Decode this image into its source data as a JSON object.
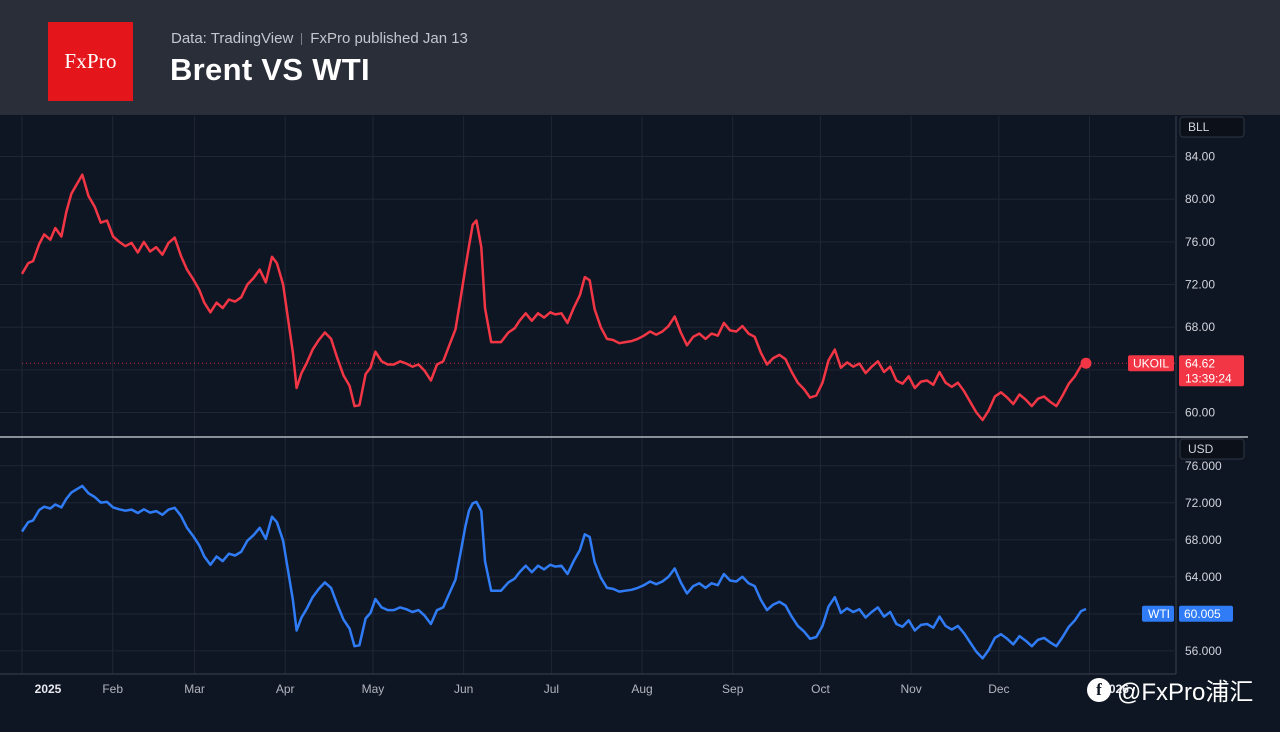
{
  "header": {
    "logo_text": "FxPro",
    "source": "Data: TradingView",
    "publisher": "FxPro published Jan 13",
    "title": "Brent VS WTI"
  },
  "watermark": {
    "text": "@FxPro浦汇",
    "icon": "facebook-icon"
  },
  "colors": {
    "brent": "#f23645",
    "wti": "#2f7cf6",
    "background": "#0f1623",
    "header": "#2a2e39",
    "grid": "#1f2635",
    "divider": "#b2b5be"
  },
  "chart_data": [
    {
      "type": "line",
      "currency_label": "BLL",
      "series": [
        {
          "name": "UKOIL",
          "last_value": "64.62",
          "countdown": "13:39:24"
        }
      ],
      "y_ticks": [
        "84.00",
        "80.00",
        "76.00",
        "72.00",
        "68.00",
        "64.00",
        "60.00"
      ],
      "ylim": [
        57.8,
        87.8
      ],
      "points": [
        [
          0,
          73.0
        ],
        [
          5,
          74.0
        ],
        [
          9,
          74.2
        ],
        [
          14,
          75.8
        ],
        [
          18,
          76.7
        ],
        [
          23,
          76.2
        ],
        [
          27,
          77.3
        ],
        [
          32,
          76.5
        ],
        [
          36,
          78.8
        ],
        [
          40,
          80.5
        ],
        [
          44,
          81.3
        ],
        [
          49,
          82.3
        ],
        [
          54,
          80.3
        ],
        [
          59,
          79.3
        ],
        [
          64,
          77.8
        ],
        [
          69,
          78.0
        ],
        [
          74,
          76.5
        ],
        [
          79,
          76.0
        ],
        [
          84,
          75.6
        ],
        [
          89,
          75.9
        ],
        [
          94,
          75.0
        ],
        [
          99,
          76.0
        ],
        [
          104,
          75.1
        ],
        [
          109,
          75.5
        ],
        [
          114,
          74.8
        ],
        [
          119,
          75.9
        ],
        [
          124,
          76.4
        ],
        [
          129,
          74.7
        ],
        [
          134,
          73.4
        ],
        [
          139,
          72.5
        ],
        [
          144,
          71.5
        ],
        [
          148,
          70.3
        ],
        [
          153,
          69.4
        ],
        [
          158,
          70.3
        ],
        [
          163,
          69.8
        ],
        [
          168,
          70.6
        ],
        [
          173,
          70.4
        ],
        [
          178,
          70.8
        ],
        [
          183,
          72.0
        ],
        [
          188,
          72.6
        ],
        [
          193,
          73.4
        ],
        [
          198,
          72.2
        ],
        [
          203,
          74.6
        ],
        [
          207,
          74.0
        ],
        [
          212,
          72.0
        ],
        [
          216,
          68.8
        ],
        [
          220,
          65.6
        ],
        [
          223,
          62.3
        ],
        [
          227,
          63.7
        ],
        [
          231,
          64.6
        ],
        [
          236,
          65.9
        ],
        [
          241,
          66.8
        ],
        [
          246,
          67.5
        ],
        [
          251,
          66.9
        ],
        [
          256,
          65.1
        ],
        [
          261,
          63.5
        ],
        [
          266,
          62.5
        ],
        [
          270,
          60.6
        ],
        [
          274,
          60.7
        ],
        [
          279,
          63.6
        ],
        [
          283,
          64.2
        ],
        [
          287,
          65.7
        ],
        [
          292,
          64.8
        ],
        [
          297,
          64.5
        ],
        [
          302,
          64.5
        ],
        [
          307,
          64.8
        ],
        [
          312,
          64.6
        ],
        [
          317,
          64.3
        ],
        [
          322,
          64.5
        ],
        [
          327,
          63.9
        ],
        [
          332,
          63.0
        ],
        [
          337,
          64.5
        ],
        [
          342,
          64.8
        ],
        [
          347,
          66.3
        ],
        [
          352,
          67.8
        ],
        [
          356,
          70.6
        ],
        [
          360,
          73.5
        ],
        [
          363,
          75.6
        ],
        [
          366,
          77.6
        ],
        [
          369,
          78.0
        ],
        [
          373,
          75.5
        ],
        [
          376,
          69.8
        ],
        [
          381,
          66.6
        ],
        [
          385,
          66.6
        ],
        [
          389,
          66.6
        ],
        [
          395,
          67.5
        ],
        [
          400,
          67.9
        ],
        [
          404,
          68.6
        ],
        [
          409,
          69.3
        ],
        [
          414,
          68.6
        ],
        [
          419,
          69.3
        ],
        [
          424,
          68.9
        ],
        [
          429,
          69.4
        ],
        [
          433,
          69.2
        ],
        [
          438,
          69.3
        ],
        [
          443,
          68.4
        ],
        [
          448,
          69.8
        ],
        [
          453,
          71.0
        ],
        [
          457,
          72.7
        ],
        [
          461,
          72.4
        ],
        [
          465,
          69.7
        ],
        [
          470,
          68.0
        ],
        [
          475,
          66.9
        ],
        [
          480,
          66.8
        ],
        [
          485,
          66.5
        ],
        [
          490,
          66.6
        ],
        [
          495,
          66.7
        ],
        [
          500,
          66.9
        ],
        [
          505,
          67.2
        ],
        [
          510,
          67.6
        ],
        [
          515,
          67.3
        ],
        [
          520,
          67.6
        ],
        [
          525,
          68.1
        ],
        [
          530,
          69.0
        ],
        [
          535,
          67.5
        ],
        [
          540,
          66.3
        ],
        [
          545,
          67.1
        ],
        [
          550,
          67.4
        ],
        [
          555,
          66.9
        ],
        [
          560,
          67.4
        ],
        [
          565,
          67.2
        ],
        [
          570,
          68.4
        ],
        [
          575,
          67.7
        ],
        [
          580,
          67.6
        ],
        [
          585,
          68.1
        ],
        [
          590,
          67.4
        ],
        [
          595,
          67.1
        ],
        [
          600,
          65.6
        ],
        [
          605,
          64.5
        ],
        [
          610,
          65.1
        ],
        [
          615,
          65.4
        ],
        [
          620,
          65.0
        ],
        [
          625,
          63.8
        ],
        [
          630,
          62.8
        ],
        [
          635,
          62.2
        ],
        [
          640,
          61.4
        ],
        [
          645,
          61.6
        ],
        [
          650,
          62.8
        ],
        [
          655,
          64.9
        ],
        [
          660,
          65.9
        ],
        [
          665,
          64.2
        ],
        [
          670,
          64.7
        ],
        [
          675,
          64.3
        ],
        [
          680,
          64.6
        ],
        [
          685,
          63.7
        ],
        [
          690,
          64.3
        ],
        [
          695,
          64.8
        ],
        [
          700,
          63.8
        ],
        [
          705,
          64.3
        ],
        [
          710,
          63.0
        ],
        [
          715,
          62.7
        ],
        [
          720,
          63.4
        ],
        [
          725,
          62.3
        ],
        [
          730,
          62.9
        ],
        [
          735,
          63.0
        ],
        [
          740,
          62.6
        ],
        [
          745,
          63.8
        ],
        [
          750,
          62.8
        ],
        [
          755,
          62.4
        ],
        [
          760,
          62.8
        ],
        [
          765,
          62.0
        ],
        [
          770,
          61.0
        ],
        [
          775,
          60.0
        ],
        [
          780,
          59.3
        ],
        [
          785,
          60.2
        ],
        [
          790,
          61.5
        ],
        [
          795,
          61.9
        ],
        [
          800,
          61.4
        ],
        [
          805,
          60.8
        ],
        [
          810,
          61.7
        ],
        [
          815,
          61.2
        ],
        [
          820,
          60.6
        ],
        [
          825,
          61.3
        ],
        [
          830,
          61.5
        ],
        [
          835,
          61.0
        ],
        [
          840,
          60.6
        ],
        [
          845,
          61.6
        ],
        [
          850,
          62.7
        ],
        [
          855,
          63.4
        ],
        [
          860,
          64.4
        ],
        [
          864,
          64.62
        ]
      ],
      "months": [
        {
          "label": "2025",
          "x": 0
        },
        {
          "label": "Feb",
          "x": 31
        },
        {
          "label": "Mar",
          "x": 59
        },
        {
          "label": "Apr",
          "x": 90
        },
        {
          "label": "May",
          "x": 120
        },
        {
          "label": "Jun",
          "x": 151
        },
        {
          "label": "Jul",
          "x": 181
        },
        {
          "label": "Aug",
          "x": 212
        },
        {
          "label": "Sep",
          "x": 243
        },
        {
          "label": "Oct",
          "x": 273
        },
        {
          "label": "Nov",
          "x": 304
        },
        {
          "label": "Dec",
          "x": 334
        },
        {
          "label": "2026",
          "x": 365
        }
      ]
    },
    {
      "type": "line",
      "currency_label": "USD",
      "series": [
        {
          "name": "WTI",
          "last_value": "60.005"
        }
      ],
      "y_ticks": [
        "76.000",
        "72.000",
        "68.000",
        "64.000",
        "60.000",
        "56.000"
      ],
      "ylim": [
        53.5,
        79.0
      ]
    }
  ]
}
